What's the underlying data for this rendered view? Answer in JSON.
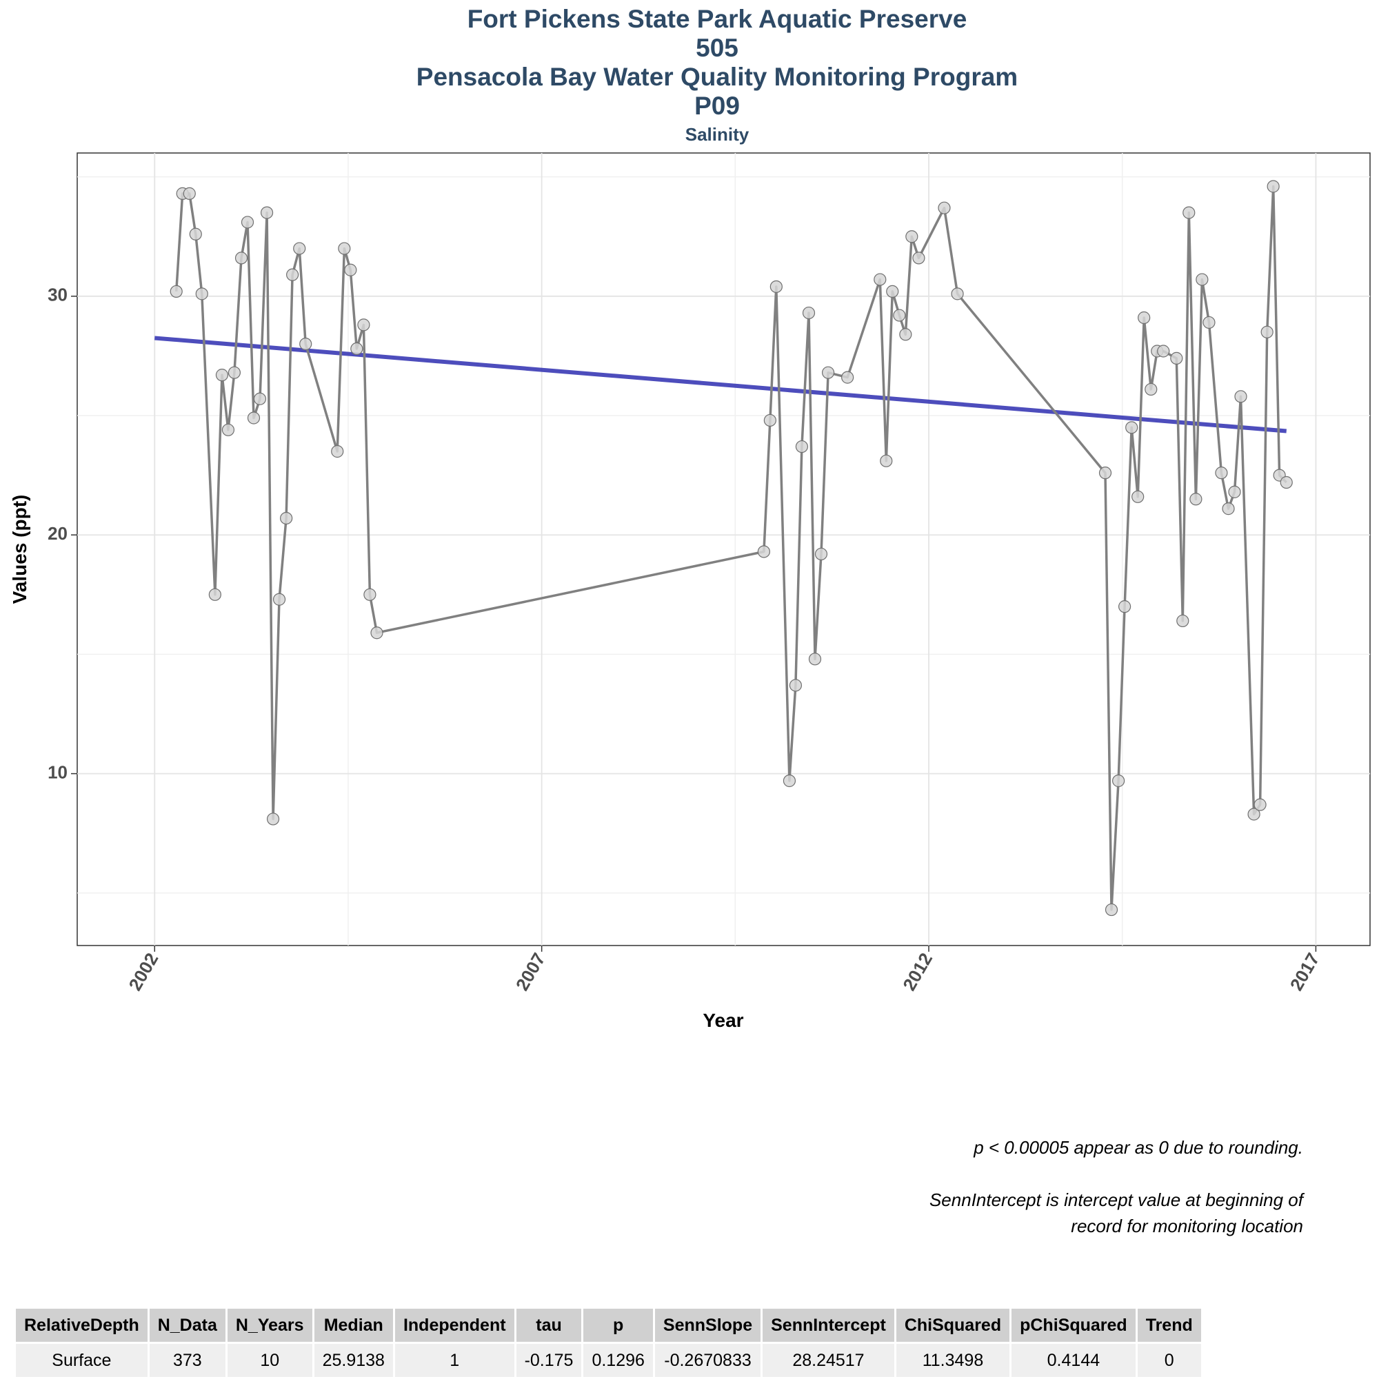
{
  "titles": {
    "line1": "Fort Pickens State Park Aquatic Preserve",
    "line2": "505",
    "line3": "Pensacola Bay Water Quality Monitoring Program",
    "line4": "P09",
    "subtitle": "Salinity"
  },
  "chart_data": {
    "type": "line",
    "title": "Salinity",
    "xlabel": "Year",
    "ylabel": "Values (ppt)",
    "xlim": [
      2001.0,
      2017.7
    ],
    "ylim": [
      2.8,
      36.0
    ],
    "x_ticks": [
      2002,
      2007,
      2012,
      2017
    ],
    "y_ticks": [
      10,
      20,
      30
    ],
    "grid": true,
    "line_color": "#808080",
    "trend_color": "#3a3ab5",
    "series": [
      {
        "x": [
          2002.28,
          2002.36,
          2002.45,
          2002.53,
          2002.61,
          2002.78,
          2002.87,
          2002.95,
          2003.03,
          2003.12,
          2003.2,
          2003.28,
          2003.36,
          2003.45,
          2003.53,
          2003.61,
          2003.7,
          2003.78,
          2003.87,
          2003.95,
          2004.36,
          2004.45,
          2004.53,
          2004.61,
          2004.7,
          2004.78,
          2004.87,
          2009.87,
          2009.95,
          2010.03,
          2010.2,
          2010.28,
          2010.36,
          2010.45,
          2010.53,
          2010.61,
          2010.7,
          2010.95,
          2011.37,
          2011.45,
          2011.53,
          2011.62,
          2011.7,
          2011.78,
          2011.87,
          2012.2,
          2012.37,
          2014.28,
          2014.36,
          2014.45,
          2014.53,
          2014.62,
          2014.7,
          2014.78,
          2014.87,
          2014.95,
          2015.03,
          2015.2,
          2015.28,
          2015.36,
          2015.45,
          2015.53,
          2015.62,
          2015.78,
          2015.87,
          2015.95,
          2016.03,
          2016.2,
          2016.28,
          2016.37,
          2016.45,
          2016.53,
          2016.62
        ],
        "y": [
          30.2,
          34.3,
          34.3,
          32.6,
          30.1,
          17.5,
          26.7,
          24.4,
          26.8,
          31.6,
          33.1,
          24.9,
          25.7,
          33.5,
          8.1,
          17.3,
          20.7,
          30.9,
          32.0,
          28.0,
          23.5,
          32.0,
          31.1,
          27.8,
          28.8,
          17.5,
          15.9,
          19.3,
          24.8,
          30.4,
          9.7,
          13.7,
          23.7,
          29.3,
          14.8,
          19.2,
          26.8,
          26.6,
          30.7,
          23.1,
          30.2,
          29.2,
          28.4,
          32.5,
          31.6,
          33.7,
          30.1,
          22.6,
          4.3,
          9.7,
          17.0,
          24.5,
          21.6,
          29.1,
          26.1,
          27.7,
          27.7,
          27.4,
          16.4,
          33.5,
          21.5,
          30.7,
          28.9,
          22.6,
          21.1,
          21.8,
          25.8,
          8.3,
          8.7,
          28.5,
          34.6,
          22.5,
          22.2
        ]
      }
    ],
    "trend": {
      "x": [
        2002.0,
        2016.62
      ],
      "y": [
        28.25,
        24.35
      ]
    }
  },
  "table": {
    "headers": [
      "RelativeDepth",
      "N_Data",
      "N_Years",
      "Median",
      "Independent",
      "tau",
      "p",
      "SennSlope",
      "SennIntercept",
      "ChiSquared",
      "pChiSquared",
      "Trend"
    ],
    "rows": [
      [
        "Surface",
        "373",
        "10",
        "25.9138",
        "1",
        "-0.175",
        "0.1296",
        "-0.2670833",
        "28.24517",
        "11.3498",
        "0.4144",
        "0"
      ]
    ]
  },
  "notes": {
    "note1": "p < 0.00005 appear as 0 due to rounding.",
    "note2_line1": "SennIntercept is intercept value at beginning of",
    "note2_line2": "record for monitoring location"
  }
}
